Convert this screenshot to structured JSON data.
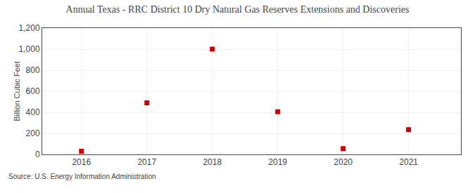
{
  "chart_data": {
    "type": "scatter",
    "title": "Annual Texas - RRC District 10 Dry Natural Gas Reserves Extensions and Discoveries",
    "ylabel": "Billion Cubic Feet",
    "annotations": [
      "Source: U.S. Energy Information Administration"
    ],
    "x": [
      2016,
      2017,
      2018,
      2019,
      2020,
      2021
    ],
    "values": [
      30,
      490,
      1000,
      405,
      55,
      235
    ],
    "color": "#cc0000",
    "marker": "square",
    "xlim": [
      2015.4,
      2021.8
    ],
    "xticks": [
      2016,
      2017,
      2018,
      2019,
      2020,
      2021
    ],
    "ylim": [
      0,
      1200
    ],
    "yticks": [
      0,
      200,
      400,
      600,
      800,
      {
        "value": 1000,
        "label": "1,000"
      },
      {
        "value": 1200,
        "label": "1,200"
      }
    ],
    "grid": true
  }
}
